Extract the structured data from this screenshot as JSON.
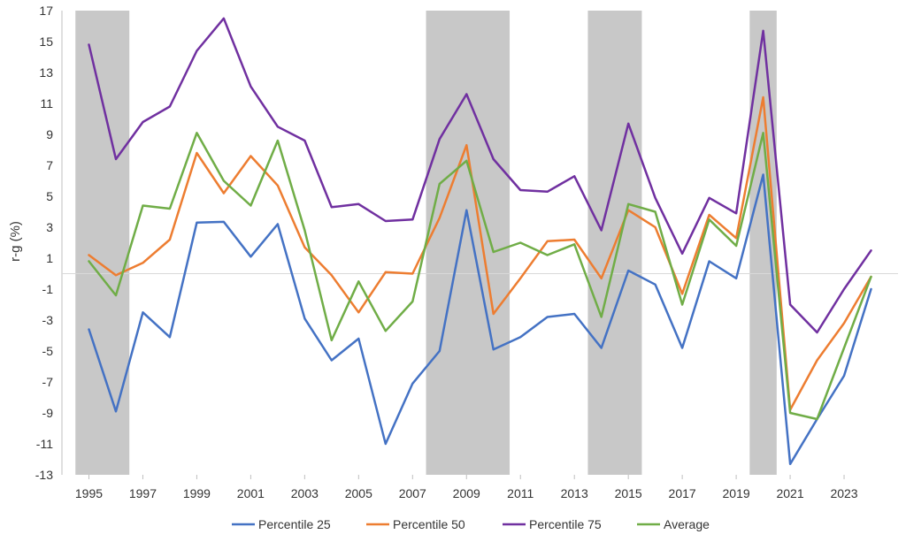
{
  "chart_data": {
    "type": "line",
    "title": "",
    "xlabel": "",
    "ylabel": "r-g (%)",
    "x": [
      1995,
      1996,
      1997,
      1998,
      1999,
      2000,
      2001,
      2002,
      2003,
      2004,
      2005,
      2006,
      2007,
      2008,
      2009,
      2010,
      2011,
      2012,
      2013,
      2014,
      2015,
      2016,
      2017,
      2018,
      2019,
      2020,
      2021,
      2022,
      2023,
      2024
    ],
    "xlim": [
      1994,
      2025
    ],
    "ylim": [
      -13,
      17
    ],
    "xticks": [
      1995,
      1997,
      1999,
      2001,
      2003,
      2005,
      2007,
      2009,
      2011,
      2013,
      2015,
      2017,
      2019,
      2021,
      2023
    ],
    "xtick_labels": [
      "1995",
      "1997",
      "1999",
      "2001",
      "2003",
      "2005",
      "2007",
      "2009",
      "2011",
      "2013",
      "2015",
      "2017",
      "2019",
      "2021",
      "2023"
    ],
    "yticks": [
      -13,
      -11,
      -9,
      -7,
      -5,
      -3,
      -1,
      1,
      3,
      5,
      7,
      9,
      11,
      13,
      15,
      17
    ],
    "ytick_labels": [
      "-13",
      "-11",
      "-9",
      "-7",
      "-5",
      "-3",
      "-1",
      "1",
      "3",
      "5",
      "7",
      "9",
      "11",
      "13",
      "15",
      "17"
    ],
    "recession_bands": [
      [
        1994.5,
        1996.5
      ],
      [
        2007.5,
        2010.6
      ],
      [
        2013.5,
        2015.5
      ],
      [
        2019.5,
        2020.5
      ]
    ],
    "legend_position": "bottom",
    "series": [
      {
        "name": "Percentile 25",
        "color": "#4472c4",
        "values": [
          -3.6,
          -8.9,
          -2.5,
          -4.1,
          3.3,
          3.35,
          1.1,
          3.2,
          -2.9,
          -5.6,
          -4.2,
          -11.0,
          -7.1,
          -5.0,
          4.1,
          -4.9,
          -4.1,
          -2.8,
          -2.6,
          -4.8,
          0.2,
          -0.7,
          -4.8,
          0.8,
          -0.3,
          6.4,
          -12.3,
          -9.4,
          -6.6,
          -1.0
        ]
      },
      {
        "name": "Percentile 50",
        "color": "#ed7d31",
        "values": [
          1.2,
          -0.1,
          0.7,
          2.2,
          7.8,
          5.2,
          7.6,
          5.7,
          1.7,
          -0.1,
          -2.5,
          0.1,
          0.0,
          3.6,
          8.3,
          -2.6,
          -0.3,
          2.1,
          2.2,
          -0.3,
          4.1,
          3.0,
          -1.3,
          3.8,
          2.3,
          11.4,
          -8.8,
          -5.6,
          -3.2,
          -0.2
        ]
      },
      {
        "name": "Percentile 75",
        "color": "#7030a0",
        "values": [
          14.8,
          7.4,
          9.8,
          10.8,
          14.4,
          16.5,
          12.1,
          9.5,
          8.6,
          4.3,
          4.5,
          3.4,
          3.5,
          8.7,
          11.6,
          7.4,
          5.4,
          5.3,
          6.3,
          2.8,
          9.7,
          4.9,
          1.3,
          4.9,
          3.9,
          15.7,
          -2.0,
          -3.8,
          -1.0,
          1.5
        ]
      },
      {
        "name": "Average",
        "color": "#70ad47",
        "values": [
          0.8,
          -1.4,
          4.4,
          4.2,
          9.1,
          6.0,
          4.4,
          8.6,
          2.8,
          -4.3,
          -0.5,
          -3.7,
          -1.8,
          5.8,
          7.3,
          1.4,
          2.0,
          1.2,
          1.9,
          -2.8,
          4.5,
          4.0,
          -2.0,
          3.5,
          1.8,
          9.1,
          -9.0,
          -9.4,
          -4.8,
          -0.2
        ]
      }
    ]
  }
}
